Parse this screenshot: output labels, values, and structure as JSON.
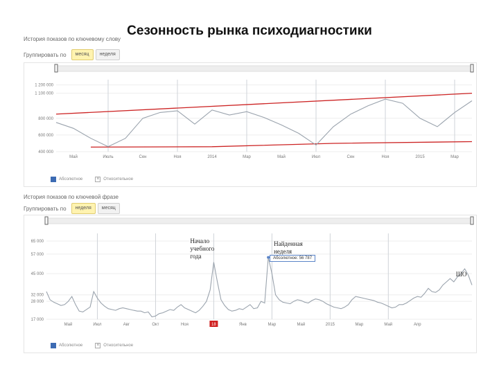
{
  "title": "Сезонность рынка психодиагностики",
  "colors": {
    "series_line": "#9aa3ad",
    "trend_line": "#cc2222",
    "grid_line": "#cfd3d8",
    "legend_blue": "#3d6bb3",
    "highlight_red": "#d02020"
  },
  "chart_data": [
    {
      "type": "line",
      "caption": "История показов по ключевому слову",
      "group_label": "Группировать по",
      "group_buttons": [
        "месяц",
        "неделя"
      ],
      "active_group": 0,
      "x_tick_labels": [
        "Май",
        "Июль",
        "Сен",
        "Ноя",
        "2014",
        "Мар",
        "Май",
        "Июл",
        "Сен",
        "Ноя",
        "2015",
        "Мар"
      ],
      "x_tick_index": [
        1,
        3,
        5,
        7,
        9,
        11,
        13,
        15,
        17,
        19,
        21,
        23
      ],
      "y_tick_labels": [
        "1 200 000",
        "1 100 000",
        "800 000",
        "600 000",
        "400 000"
      ],
      "y_tick_values": [
        1200000,
        1100000,
        800000,
        600000,
        400000
      ],
      "ylim": [
        400000,
        1230000
      ],
      "values": [
        750000,
        680000,
        560000,
        460000,
        560000,
        800000,
        870000,
        890000,
        730000,
        900000,
        840000,
        880000,
        810000,
        720000,
        620000,
        480000,
        700000,
        850000,
        950000,
        1030000,
        980000,
        800000,
        700000,
        870000,
        1010000
      ],
      "trend_upper": [
        [
          0,
          850000
        ],
        [
          24,
          1100000
        ]
      ],
      "trend_lower": [
        [
          2,
          455000
        ],
        [
          9,
          460000
        ],
        [
          16,
          500000
        ],
        [
          24,
          520000
        ]
      ],
      "legend": [
        "Абсолютное",
        "Относительное"
      ]
    },
    {
      "type": "line",
      "caption": "История показов по ключевой фразе",
      "group_label": "Группировать по",
      "group_buttons": [
        "неделя",
        "месяц"
      ],
      "active_group": 0,
      "x_tick_labels": [
        "Май",
        "Июл",
        "Авг",
        "Окт",
        "Ноя",
        "18",
        "Янв",
        "Мар",
        "Май",
        "2015",
        "Мар",
        "Май",
        "Апр"
      ],
      "x_tick_index": [
        6,
        14,
        22,
        30,
        38,
        46,
        54,
        62,
        70,
        78,
        86,
        94,
        102
      ],
      "highlight_tick": 5,
      "y_tick_labels": [
        "65 000",
        "57 000",
        "45 000",
        "32 000",
        "28 000",
        "17 000"
      ],
      "y_tick_values": [
        65000,
        57000,
        45000,
        32000,
        28000,
        17000
      ],
      "ylim": [
        17000,
        68000
      ],
      "values": [
        34000,
        29000,
        27500,
        26500,
        25500,
        26000,
        28000,
        31000,
        26000,
        22000,
        21500,
        23000,
        24500,
        34000,
        30000,
        27000,
        25000,
        23500,
        23000,
        22500,
        23500,
        24000,
        23500,
        23000,
        22500,
        22000,
        22000,
        21000,
        21500,
        18500,
        19000,
        20500,
        21000,
        22000,
        23000,
        22500,
        24500,
        26000,
        24000,
        23000,
        22000,
        21000,
        22500,
        25000,
        28000,
        35000,
        52000,
        40000,
        29000,
        25500,
        23000,
        22000,
        22500,
        23500,
        23000,
        24500,
        26000,
        23500,
        24000,
        28000,
        27000,
        55000,
        45000,
        32000,
        29000,
        27500,
        27000,
        26500,
        28000,
        29000,
        28500,
        27500,
        27000,
        28500,
        29500,
        29000,
        28000,
        26500,
        25500,
        24500,
        24000,
        23500,
        24500,
        26000,
        29000,
        31000,
        30500,
        30000,
        29500,
        29000,
        28500,
        27500,
        27000,
        26000,
        25000,
        24000,
        24500,
        26000,
        26000,
        27000,
        28500,
        30000,
        31000,
        30500,
        33000,
        36000,
        34000,
        33500,
        35000,
        38000,
        40000,
        42000,
        40000,
        43000,
        45000,
        48000,
        44000,
        38000
      ],
      "legend": [
        "Абсолютное",
        "Относительное"
      ],
      "tooltip": "Абсолютное: 56 787",
      "annotations": [
        {
          "lines": [
            "Начало",
            "учебного",
            "года"
          ],
          "point": 46
        },
        {
          "lines": [
            "Найденная",
            "неделя"
          ],
          "point": 61
        },
        {
          "lines": [
            "ШО"
          ],
          "point": 116
        }
      ]
    }
  ]
}
